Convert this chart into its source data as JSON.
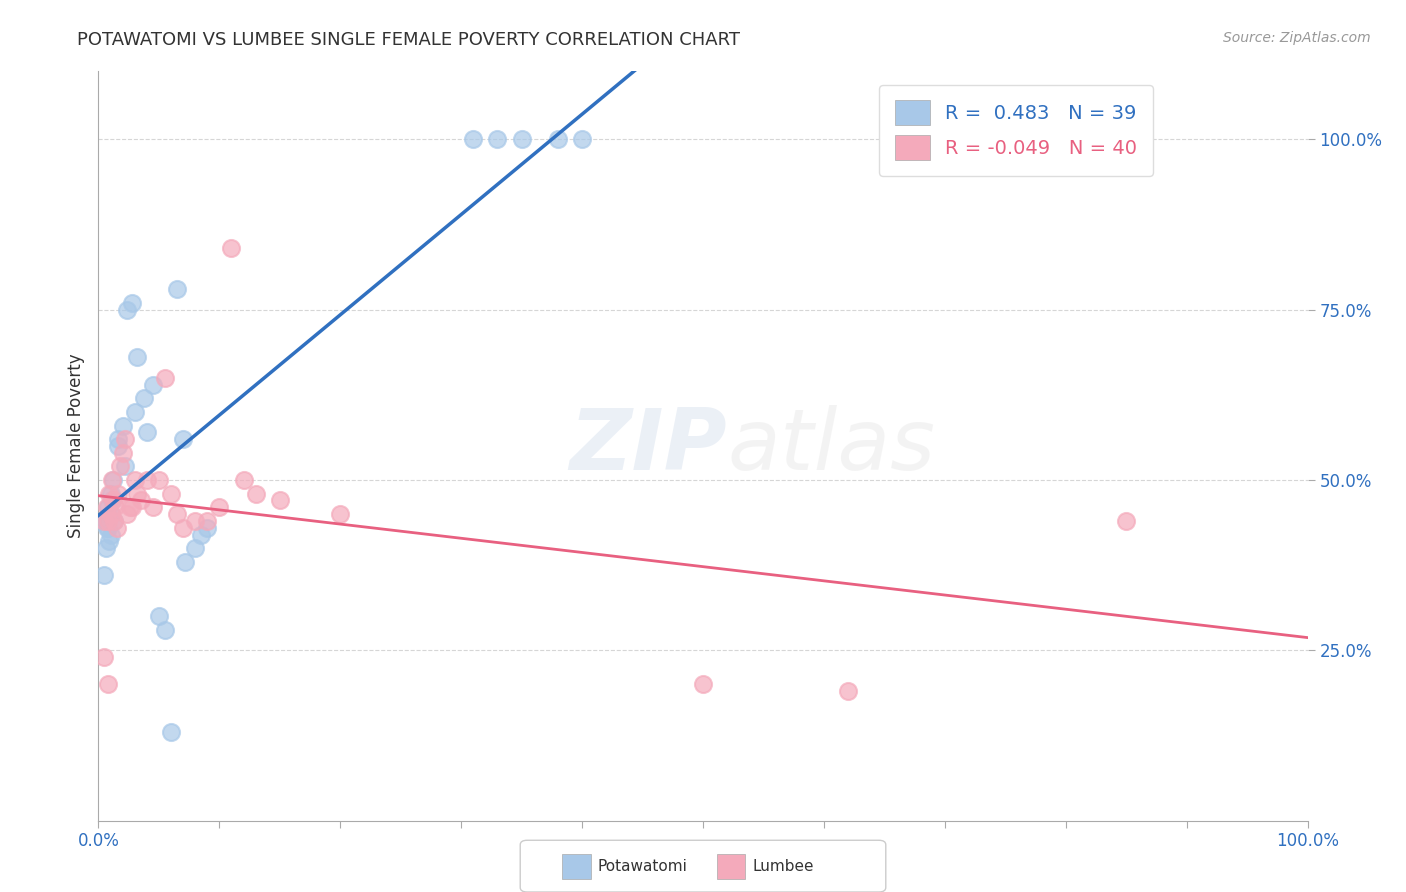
{
  "title": "POTAWATOMI VS LUMBEE SINGLE FEMALE POVERTY CORRELATION CHART",
  "source": "Source: ZipAtlas.com",
  "ylabel": "Single Female Poverty",
  "legend_potawatomi": "Potawatomi",
  "legend_lumbee": "Lumbee",
  "r_potawatomi": 0.483,
  "n_potawatomi": 39,
  "r_lumbee": -0.049,
  "n_lumbee": 40,
  "potawatomi_color": "#A8C8E8",
  "lumbee_color": "#F4AABB",
  "line_potawatomi_color": "#3070C0",
  "line_lumbee_color": "#E86080",
  "background_color": "#FFFFFF",
  "potawatomi_x": [
    0.005,
    0.007,
    0.008,
    0.01,
    0.01,
    0.013,
    0.016,
    0.016,
    0.02,
    0.022,
    0.024,
    0.028,
    0.03,
    0.032,
    0.038,
    0.04,
    0.045,
    0.05,
    0.055,
    0.06,
    0.065,
    0.07,
    0.072,
    0.08,
    0.085,
    0.09,
    0.005,
    0.006,
    0.007,
    0.008,
    0.009,
    0.01,
    0.011,
    0.012,
    0.31,
    0.33,
    0.35,
    0.38,
    0.4
  ],
  "potawatomi_y": [
    0.44,
    0.43,
    0.46,
    0.42,
    0.48,
    0.44,
    0.55,
    0.56,
    0.58,
    0.52,
    0.75,
    0.76,
    0.6,
    0.68,
    0.62,
    0.57,
    0.64,
    0.3,
    0.28,
    0.13,
    0.78,
    0.56,
    0.38,
    0.4,
    0.42,
    0.43,
    0.36,
    0.4,
    0.44,
    0.43,
    0.41,
    0.45,
    0.47,
    0.5,
    1.0,
    1.0,
    1.0,
    1.0,
    1.0
  ],
  "lumbee_x": [
    0.005,
    0.007,
    0.008,
    0.009,
    0.01,
    0.011,
    0.012,
    0.013,
    0.014,
    0.015,
    0.016,
    0.018,
    0.02,
    0.022,
    0.024,
    0.026,
    0.028,
    0.03,
    0.032,
    0.035,
    0.04,
    0.045,
    0.05,
    0.055,
    0.06,
    0.065,
    0.07,
    0.08,
    0.09,
    0.1,
    0.11,
    0.12,
    0.13,
    0.15,
    0.2,
    0.5,
    0.62,
    0.85,
    0.005,
    0.008
  ],
  "lumbee_y": [
    0.44,
    0.46,
    0.44,
    0.48,
    0.45,
    0.5,
    0.47,
    0.44,
    0.46,
    0.43,
    0.48,
    0.52,
    0.54,
    0.56,
    0.45,
    0.46,
    0.46,
    0.5,
    0.48,
    0.47,
    0.5,
    0.46,
    0.5,
    0.65,
    0.48,
    0.45,
    0.43,
    0.44,
    0.44,
    0.46,
    0.84,
    0.5,
    0.48,
    0.47,
    0.45,
    0.2,
    0.19,
    0.44,
    0.24,
    0.2
  ],
  "xlim": [
    0.0,
    1.0
  ],
  "ylim": [
    0.0,
    1.1
  ],
  "yticks": [
    0.25,
    0.5,
    0.75,
    1.0
  ],
  "ytick_labels": [
    "25.0%",
    "50.0%",
    "75.0%",
    "100.0%"
  ],
  "xticks": [
    0.0,
    0.1,
    0.2,
    0.3,
    0.4,
    0.5,
    0.6,
    0.7,
    0.8,
    0.9,
    1.0
  ],
  "xtick_labels": [
    "0.0%",
    "",
    "",
    "",
    "",
    "",
    "",
    "",
    "",
    "",
    "100.0%"
  ],
  "title_fontsize": 13,
  "tick_fontsize": 12,
  "source_fontsize": 10
}
